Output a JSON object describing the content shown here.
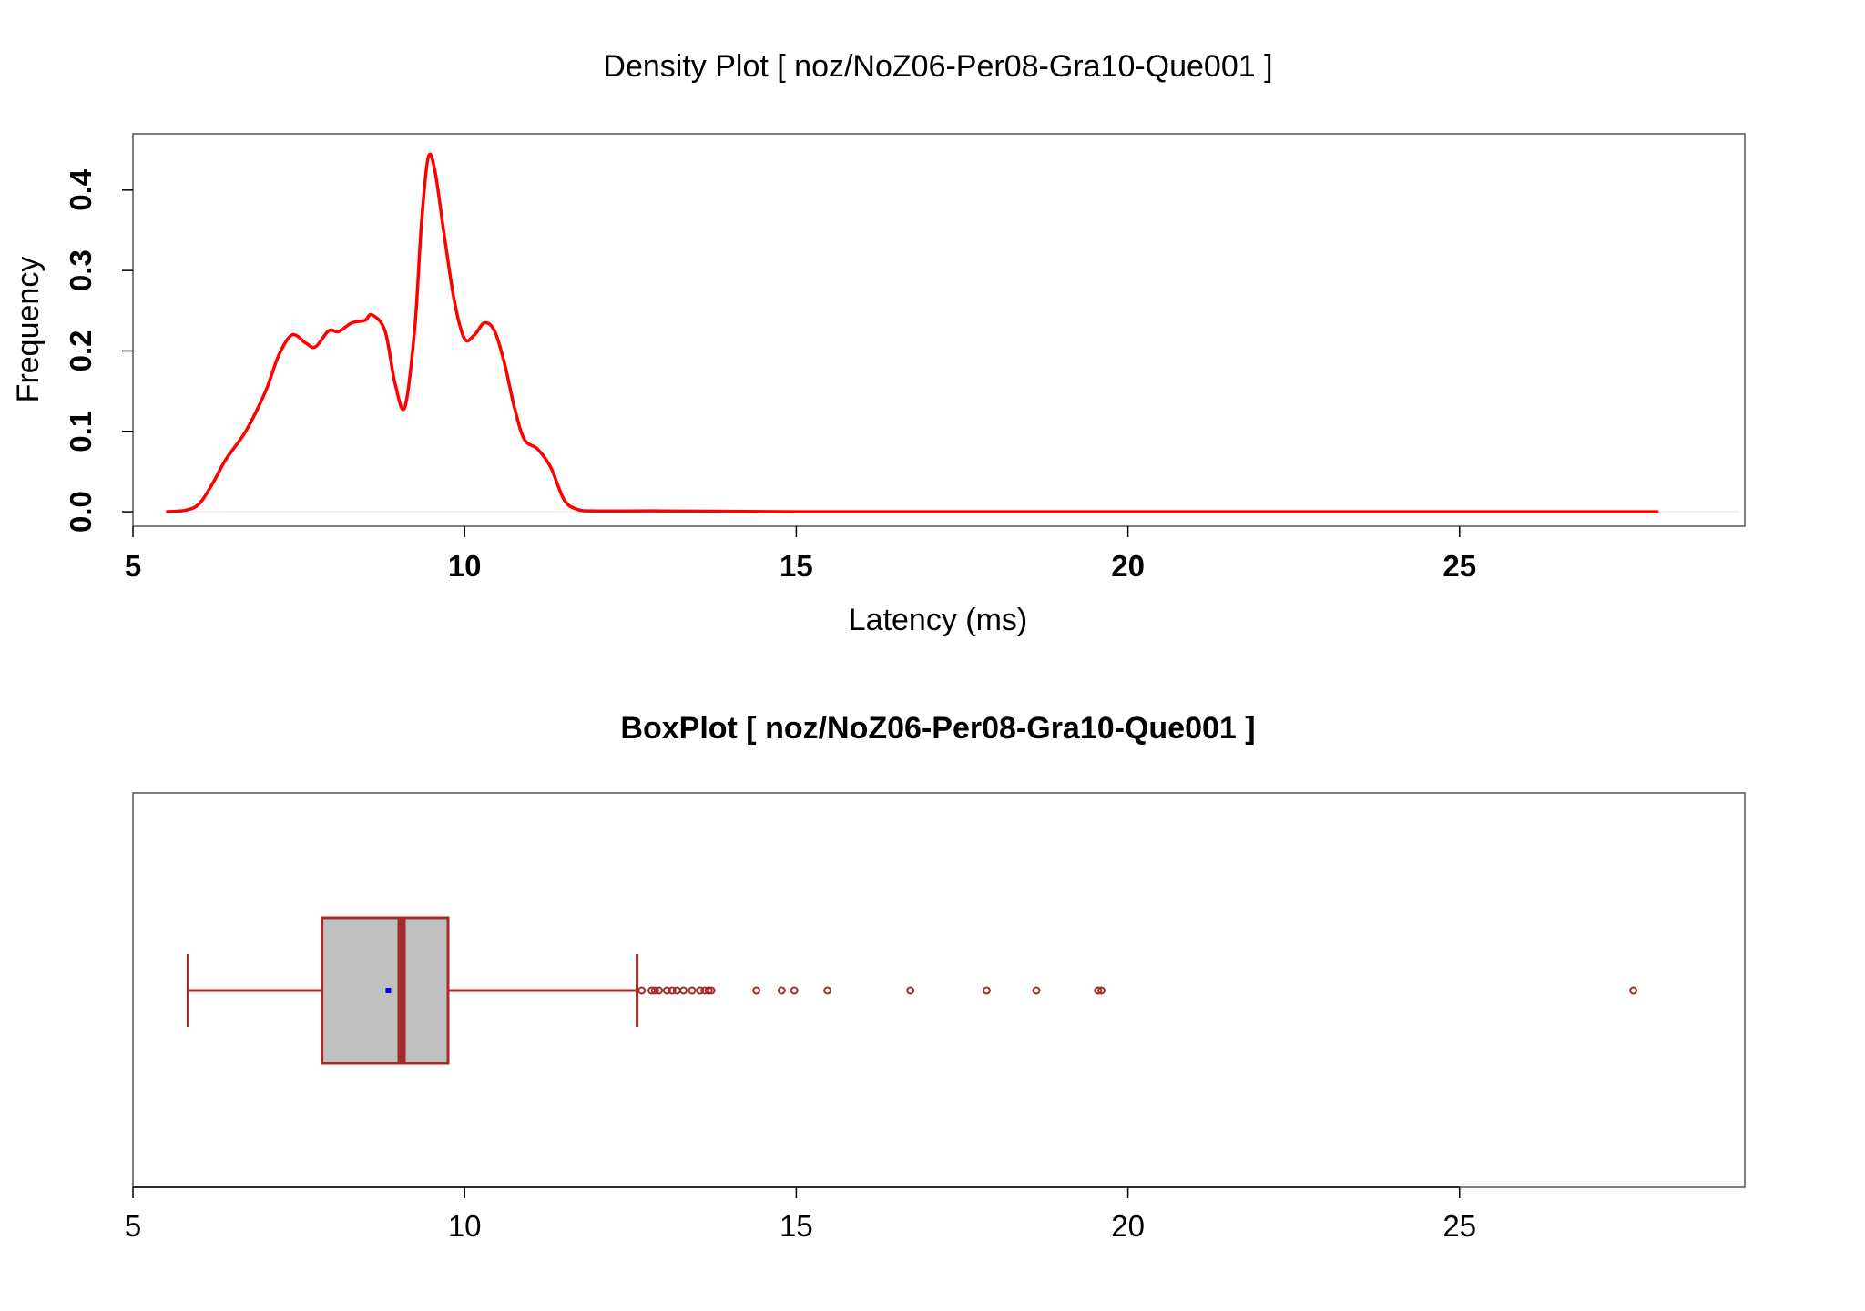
{
  "chart_data": [
    {
      "type": "area",
      "title": "Density Plot [ noz/NoZ06-Per08-Gra10-Que001 ]",
      "xlabel": "Latency (ms)",
      "ylabel": "Frequency",
      "xlim": [
        5,
        29.3
      ],
      "ylim": [
        -0.018,
        0.47
      ],
      "x_ticks": [
        "5",
        "10",
        "15",
        "20",
        "25"
      ],
      "y_ticks": [
        "0.0",
        "0.1",
        "0.2",
        "0.3",
        "0.4"
      ],
      "series": [
        {
          "color": "#ff0000",
          "x": [
            5.5,
            5.8,
            6.0,
            6.2,
            6.4,
            6.7,
            7.0,
            7.2,
            7.4,
            7.6,
            7.75,
            7.95,
            8.1,
            8.3,
            8.5,
            8.6,
            8.8,
            8.95,
            9.1,
            9.25,
            9.35,
            9.45,
            9.55,
            9.7,
            9.85,
            10.0,
            10.15,
            10.3,
            10.45,
            10.6,
            10.75,
            10.9,
            11.1,
            11.3,
            11.5,
            11.7,
            12.0,
            13.0,
            15.0,
            20.0,
            25.0,
            28.0
          ],
          "y": [
            0.0,
            0.002,
            0.01,
            0.035,
            0.065,
            0.1,
            0.15,
            0.195,
            0.22,
            0.21,
            0.205,
            0.225,
            0.224,
            0.235,
            0.238,
            0.245,
            0.225,
            0.16,
            0.13,
            0.23,
            0.36,
            0.44,
            0.425,
            0.34,
            0.26,
            0.215,
            0.22,
            0.235,
            0.225,
            0.185,
            0.13,
            0.09,
            0.078,
            0.055,
            0.015,
            0.003,
            0.001,
            0.001,
            0.0,
            0.0,
            0.0,
            0.0
          ]
        }
      ]
    },
    {
      "type": "box",
      "title": "BoxPlot [ noz/NoZ06-Per08-Gra10-Que001 ]",
      "xlim": [
        5,
        29.3
      ],
      "x_ticks": [
        "5",
        "10",
        "15",
        "20",
        "25"
      ],
      "whisker_low": 5.83,
      "q1": 7.85,
      "median": 9.05,
      "mean": 8.85,
      "q3": 9.75,
      "whisker_high": 12.6,
      "outliers": [
        12.67,
        12.82,
        12.87,
        12.93,
        13.05,
        13.13,
        13.2,
        13.3,
        13.43,
        13.55,
        13.62,
        13.68,
        13.72,
        14.4,
        14.78,
        14.97,
        15.47,
        16.72,
        17.87,
        18.62,
        19.55,
        19.6,
        27.62
      ],
      "box_fill": "#c0c0c0",
      "box_stroke": "#a52a2a",
      "mean_color": "#0000ff"
    }
  ]
}
